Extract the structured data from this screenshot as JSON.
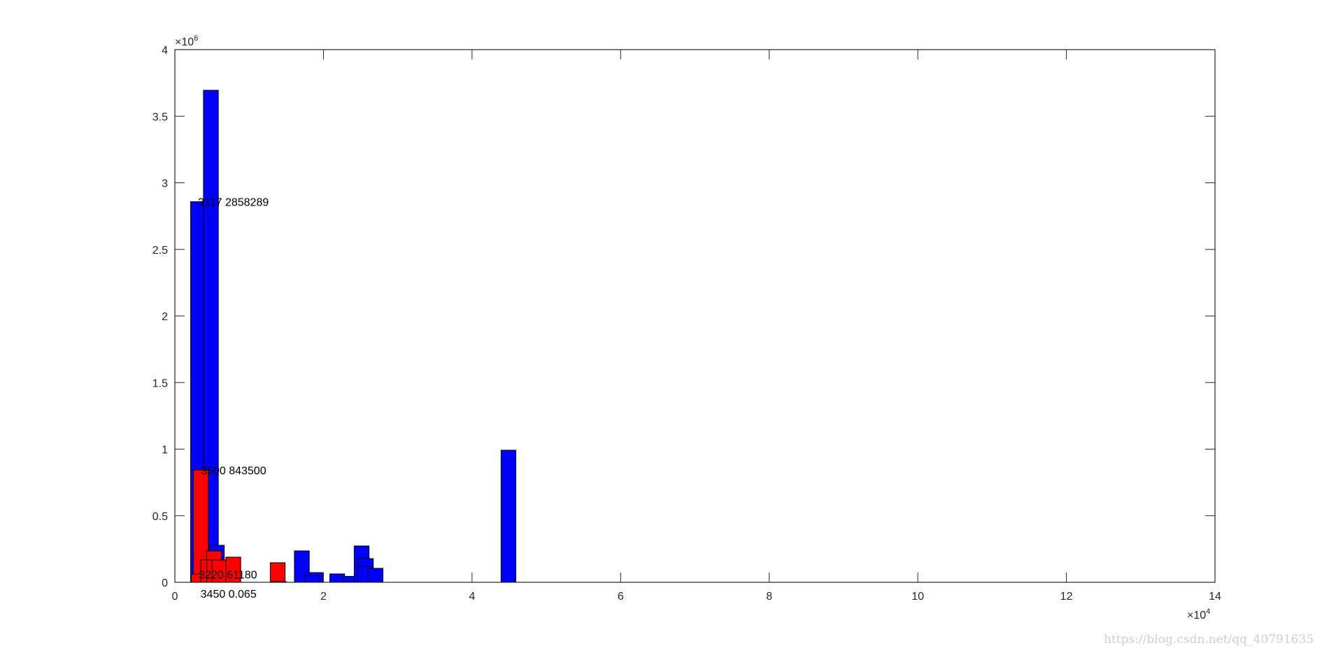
{
  "chart_data": {
    "type": "bar",
    "xlim": [
      0,
      140000
    ],
    "ylim": [
      0,
      4000000
    ],
    "xticks": [
      0,
      20000,
      40000,
      60000,
      80000,
      100000,
      120000,
      140000
    ],
    "xtick_labels": [
      "0",
      "2",
      "4",
      "6",
      "8",
      "10",
      "12",
      "14"
    ],
    "yticks": [
      0,
      500000,
      1000000,
      1500000,
      2000000,
      2500000,
      3000000,
      3500000,
      4000000
    ],
    "ytick_labels": [
      "0",
      "0.5",
      "1",
      "1.5",
      "2",
      "2.5",
      "3",
      "3.5",
      "4"
    ],
    "x_exponent": "4",
    "y_exponent": "6",
    "grid": false,
    "bar_width": 2000,
    "series": [
      {
        "color": "#0000ff",
        "x": [
          3117,
          4850,
          5650,
          17090,
          18930,
          18500,
          21850,
          23630,
          25140,
          25710,
          25600,
          27000,
          44900
        ],
        "values": [
          2858289,
          3695000,
          278000,
          236000,
          73000,
          52000,
          63000,
          45000,
          273000,
          178000,
          120000,
          105000,
          992000
        ]
      },
      {
        "color": "#ff0000",
        "x": [
          3500,
          3220,
          5270,
          4500,
          5300,
          6000,
          7860,
          13840,
          14000
        ],
        "values": [
          843500,
          61180,
          236000,
          168000,
          168000,
          168000,
          189000,
          147000,
          5000
        ]
      }
    ],
    "annotations": [
      {
        "x": 3117,
        "y": 2858289,
        "text": "3117 2858289"
      },
      {
        "x": 3500,
        "y": 843500,
        "text": "3500 843500"
      },
      {
        "x": 3220,
        "y": 61180,
        "text": "3220 61180"
      },
      {
        "x": 3450,
        "y": 0,
        "text": "3450 0.065"
      }
    ]
  },
  "watermark": "https://blog.csdn.net/qq_40791635"
}
